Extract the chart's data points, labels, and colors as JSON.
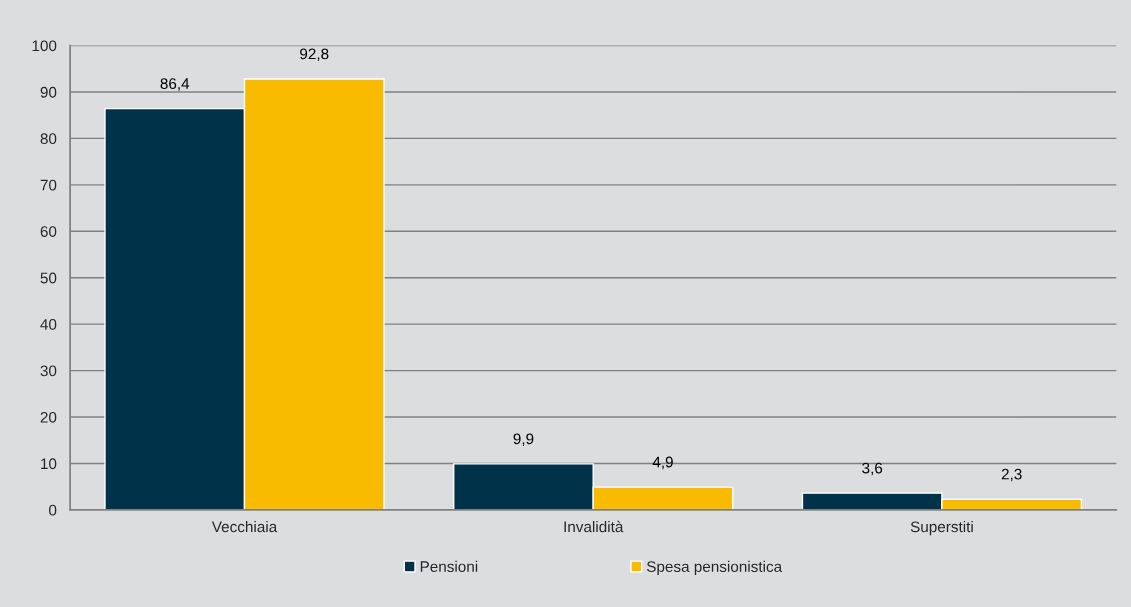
{
  "chart_data": {
    "type": "bar",
    "categories": [
      "Vecchiaia",
      "Invalidità",
      "Superstiti"
    ],
    "series": [
      {
        "name": "Pensioni",
        "color": "#00324a",
        "values": [
          86.4,
          9.9,
          3.6
        ],
        "value_labels": [
          "86,4",
          "9,9",
          "3,6"
        ]
      },
      {
        "name": "Spesa pensionistica",
        "color": "#f9bb00",
        "values": [
          92.8,
          4.9,
          2.3
        ],
        "value_labels": [
          "92,8",
          "4,9",
          "2,3"
        ]
      }
    ],
    "ylim": [
      0,
      100
    ],
    "yticks": [
      0,
      10,
      20,
      30,
      40,
      50,
      60,
      70,
      80,
      90,
      100
    ],
    "grid": "y",
    "legend": "bottom"
  }
}
